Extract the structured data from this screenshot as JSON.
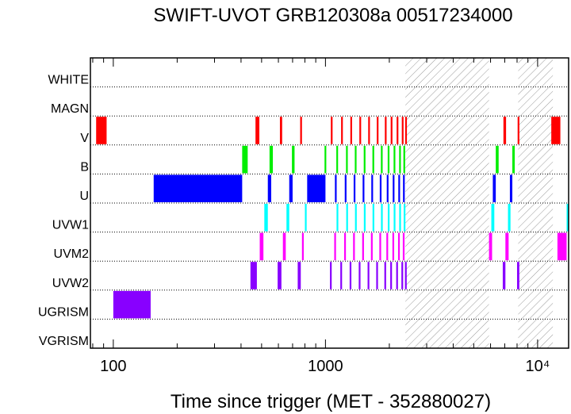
{
  "chart_data": {
    "type": "timeline",
    "title": "SWIFT-UVOT GRB120308a 00517234000",
    "xlabel": "Time since trigger (MET - 352880027)",
    "xscale": "log",
    "xlim": [
      78,
      14000
    ],
    "xticks": [
      {
        "value": 100,
        "label": "100"
      },
      {
        "value": 1000,
        "label": "1000"
      },
      {
        "value": 10000,
        "label": "10⁴"
      }
    ],
    "filters": [
      "WHITE",
      "MAGN",
      "V",
      "B",
      "U",
      "UVW1",
      "UVM2",
      "UVW2",
      "UGRISM",
      "VGRISM"
    ],
    "colors": {
      "V": "#ff0000",
      "B": "#00ee00",
      "U": "#0000ff",
      "UVW1": "#00ffff",
      "UVM2": "#ff00ff",
      "UVW2": "#8800ff",
      "UGRISM": "#8800ff"
    },
    "gaps": [
      [
        2380,
        5900
      ],
      [
        8100,
        11800
      ]
    ],
    "exposures": {
      "WHITE": [],
      "MAGN": [],
      "V": [
        [
          83,
          93
        ],
        [
          468,
          488
        ],
        [
          610,
          625
        ],
        [
          760,
          775
        ],
        [
          1060,
          1075
        ],
        [
          1185,
          1198
        ],
        [
          1310,
          1324
        ],
        [
          1445,
          1458
        ],
        [
          1590,
          1603
        ],
        [
          1745,
          1757
        ],
        [
          1905,
          1917
        ],
        [
          2030,
          2042
        ],
        [
          2165,
          2177
        ],
        [
          2290,
          2305
        ],
        [
          2375,
          2390
        ],
        [
          6900,
          7100
        ],
        [
          8050,
          8150
        ],
        [
          11600,
          12800
        ]
      ],
      "B": [
        [
          405,
          430
        ],
        [
          545,
          565
        ],
        [
          695,
          715
        ],
        [
          990,
          1005
        ],
        [
          1125,
          1140
        ],
        [
          1250,
          1265
        ],
        [
          1375,
          1390
        ],
        [
          1515,
          1528
        ],
        [
          1665,
          1678
        ],
        [
          1825,
          1838
        ],
        [
          1965,
          1978
        ],
        [
          2095,
          2107
        ],
        [
          2225,
          2240
        ],
        [
          2330,
          2345
        ],
        [
          6350,
          6550
        ],
        [
          7600,
          7800
        ]
      ],
      "U": [
        [
          155,
          405
        ],
        [
          535,
          555
        ],
        [
          675,
          700
        ],
        [
          820,
          1000
        ],
        [
          1108,
          1123
        ],
        [
          1233,
          1247
        ],
        [
          1358,
          1372
        ],
        [
          1497,
          1510
        ],
        [
          1645,
          1658
        ],
        [
          1803,
          1816
        ],
        [
          1945,
          1958
        ],
        [
          2075,
          2087
        ],
        [
          2205,
          2220
        ],
        [
          2320,
          2335
        ],
        [
          6150,
          6350
        ],
        [
          7400,
          7600
        ]
      ],
      "UVW1": [
        [
          515,
          535
        ],
        [
          655,
          675
        ],
        [
          800,
          815
        ],
        [
          1128,
          1140
        ],
        [
          1253,
          1265
        ],
        [
          1378,
          1390
        ],
        [
          1517,
          1528
        ],
        [
          1667,
          1678
        ],
        [
          1827,
          1838
        ],
        [
          1967,
          1978
        ],
        [
          2097,
          2108
        ],
        [
          2227,
          2240
        ],
        [
          2337,
          2350
        ],
        [
          6050,
          6250
        ],
        [
          7250,
          7450
        ],
        [
          13700,
          14200
        ]
      ],
      "UVM2": [
        [
          490,
          510
        ],
        [
          630,
          650
        ],
        [
          775,
          790
        ],
        [
          1100,
          1113
        ],
        [
          1225,
          1238
        ],
        [
          1350,
          1362
        ],
        [
          1490,
          1502
        ],
        [
          1638,
          1650
        ],
        [
          1795,
          1807
        ],
        [
          1937,
          1949
        ],
        [
          2068,
          2080
        ],
        [
          2199,
          2212
        ],
        [
          2315,
          2328
        ],
        [
          5900,
          6100
        ],
        [
          7050,
          7300
        ],
        [
          12400,
          13700
        ]
      ],
      "UVW2": [
        [
          443,
          475
        ],
        [
          595,
          620
        ],
        [
          740,
          765
        ],
        [
          1050,
          1065
        ],
        [
          1175,
          1190
        ],
        [
          1300,
          1315
        ],
        [
          1435,
          1448
        ],
        [
          1580,
          1593
        ],
        [
          1735,
          1748
        ],
        [
          1895,
          1908
        ],
        [
          2020,
          2033
        ],
        [
          2155,
          2168
        ],
        [
          2280,
          2295
        ],
        [
          2370,
          2385
        ],
        [
          6850,
          7050
        ],
        [
          8000,
          8200
        ]
      ],
      "UGRISM": [
        [
          100,
          150
        ]
      ],
      "VGRISM": []
    }
  }
}
